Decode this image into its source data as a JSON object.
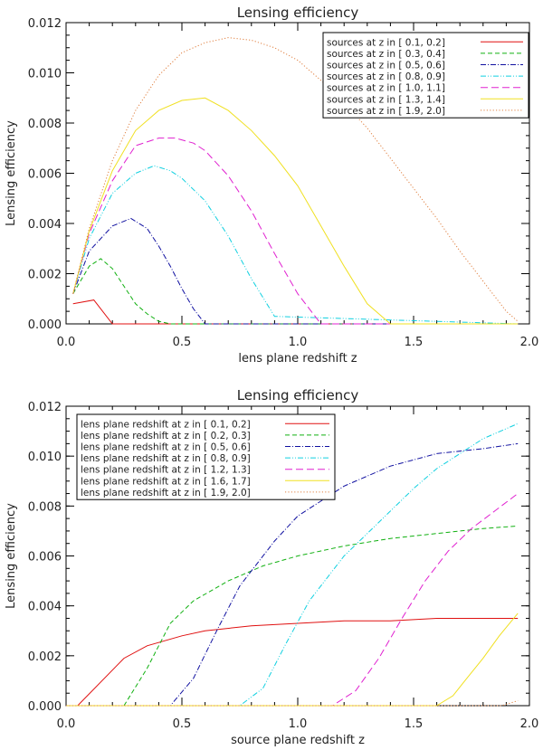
{
  "chart_data": [
    {
      "type": "line",
      "title": "Lensing efficiency",
      "xlabel": "lens plane redshift z",
      "ylabel": "Lensing efficiency",
      "xlim": [
        0.0,
        2.0
      ],
      "ylim": [
        0.0,
        0.012
      ],
      "xticks": [
        "0.0",
        "0.5",
        "1.0",
        "1.5",
        "2.0"
      ],
      "yticks": [
        "0.000",
        "0.002",
        "0.004",
        "0.006",
        "0.008",
        "0.010",
        "0.012"
      ],
      "legend_position": "top-right",
      "series": [
        {
          "name": "sources at z in [ 0.1, 0.2]",
          "color": "#e01010",
          "dash": "solid",
          "x": [
            0.03,
            0.12,
            0.2,
            1.95
          ],
          "y": [
            0.0008,
            0.00095,
            0.0,
            0.0
          ]
        },
        {
          "name": "sources at z in [ 0.3, 0.4]",
          "color": "#10b010",
          "dash": "dash",
          "x": [
            0.03,
            0.1,
            0.15,
            0.2,
            0.25,
            0.3,
            0.35,
            0.4,
            0.45,
            1.95
          ],
          "y": [
            0.0012,
            0.0023,
            0.0026,
            0.0022,
            0.0015,
            0.0008,
            0.0004,
            0.0001,
            0.0,
            0.0
          ]
        },
        {
          "name": "sources at z in [ 0.5, 0.6]",
          "color": "#1010a0",
          "dash": "dashdot",
          "x": [
            0.03,
            0.1,
            0.2,
            0.28,
            0.35,
            0.4,
            0.45,
            0.5,
            0.55,
            0.6,
            1.95
          ],
          "y": [
            0.0012,
            0.0029,
            0.0039,
            0.0042,
            0.0038,
            0.0031,
            0.0023,
            0.0014,
            0.0006,
            0.0,
            0.0
          ]
        },
        {
          "name": "sources at z in [ 0.8, 0.9]",
          "color": "#10d0e0",
          "dash": "dashdotdot",
          "x": [
            0.03,
            0.1,
            0.2,
            0.3,
            0.38,
            0.45,
            0.5,
            0.6,
            0.7,
            0.8,
            0.9,
            1.95
          ],
          "y": [
            0.0012,
            0.0034,
            0.0052,
            0.006,
            0.0063,
            0.0061,
            0.0058,
            0.0049,
            0.0035,
            0.0018,
            0.0003,
            0.0
          ]
        },
        {
          "name": "sources at z in [ 1.0, 1.1]",
          "color": "#e020d0",
          "dash": "longdash",
          "x": [
            0.03,
            0.1,
            0.2,
            0.3,
            0.4,
            0.47,
            0.55,
            0.6,
            0.7,
            0.8,
            0.9,
            1.0,
            1.1,
            1.95
          ],
          "y": [
            0.0012,
            0.0036,
            0.0057,
            0.0071,
            0.0074,
            0.0074,
            0.0072,
            0.0069,
            0.0059,
            0.0045,
            0.0028,
            0.0012,
            0.0,
            0.0
          ]
        },
        {
          "name": "sources at z in [ 1.3, 1.4]",
          "color": "#f0e020",
          "dash": "solid",
          "x": [
            0.03,
            0.1,
            0.2,
            0.3,
            0.4,
            0.5,
            0.6,
            0.7,
            0.8,
            0.9,
            1.0,
            1.1,
            1.2,
            1.3,
            1.4,
            1.95
          ],
          "y": [
            0.0012,
            0.0037,
            0.0061,
            0.0077,
            0.0085,
            0.0089,
            0.009,
            0.0085,
            0.0077,
            0.0067,
            0.0055,
            0.0039,
            0.0023,
            0.0008,
            0.0,
            0.0
          ]
        },
        {
          "name": "sources at z in [ 1.9, 2.0]",
          "color": "#e08040",
          "dash": "dot",
          "x": [
            0.03,
            0.1,
            0.2,
            0.3,
            0.4,
            0.5,
            0.6,
            0.7,
            0.8,
            0.9,
            1.0,
            1.1,
            1.2,
            1.3,
            1.4,
            1.5,
            1.6,
            1.7,
            1.8,
            1.9,
            1.95
          ],
          "y": [
            0.0012,
            0.0038,
            0.0065,
            0.0085,
            0.0099,
            0.0108,
            0.0112,
            0.0114,
            0.0113,
            0.011,
            0.0105,
            0.0097,
            0.0088,
            0.0078,
            0.0066,
            0.0054,
            0.0042,
            0.0029,
            0.0017,
            0.0005,
            0.0001
          ]
        }
      ]
    },
    {
      "type": "line",
      "title": "Lensing efficiency",
      "xlabel": "source plane redshift z",
      "ylabel": "Lensing efficiency",
      "xlim": [
        0.0,
        2.0
      ],
      "ylim": [
        0.0,
        0.012
      ],
      "xticks": [
        "0.0",
        "0.5",
        "1.0",
        "1.5",
        "2.0"
      ],
      "yticks": [
        "0.000",
        "0.002",
        "0.004",
        "0.006",
        "0.008",
        "0.010",
        "0.012"
      ],
      "legend_position": "top-left",
      "series": [
        {
          "name": "lens plane redshift at z in [ 0.1, 0.2]",
          "color": "#e01010",
          "dash": "solid",
          "x": [
            0.0,
            0.05,
            0.25,
            0.35,
            0.5,
            0.6,
            0.8,
            1.0,
            1.2,
            1.4,
            1.6,
            1.8,
            1.95
          ],
          "y": [
            0.0,
            0.0,
            0.0019,
            0.0024,
            0.0028,
            0.003,
            0.0032,
            0.0033,
            0.0034,
            0.0034,
            0.0035,
            0.0035,
            0.0035
          ]
        },
        {
          "name": "lens plane redshift at z in [ 0.2, 0.3]",
          "color": "#10b010",
          "dash": "dash",
          "x": [
            0.0,
            0.25,
            0.35,
            0.45,
            0.55,
            0.7,
            0.85,
            1.0,
            1.2,
            1.4,
            1.6,
            1.8,
            1.95
          ],
          "y": [
            0.0,
            0.0,
            0.0015,
            0.0033,
            0.0042,
            0.005,
            0.0056,
            0.006,
            0.0064,
            0.0067,
            0.0069,
            0.0071,
            0.0072
          ]
        },
        {
          "name": "lens plane redshift at z in [ 0.5, 0.6]",
          "color": "#1010a0",
          "dash": "dashdot",
          "x": [
            0.0,
            0.45,
            0.55,
            0.65,
            0.75,
            0.9,
            1.0,
            1.2,
            1.4,
            1.6,
            1.8,
            1.95
          ],
          "y": [
            0.0,
            0.0,
            0.0011,
            0.003,
            0.0048,
            0.0066,
            0.0076,
            0.0088,
            0.0096,
            0.0101,
            0.0103,
            0.0105
          ]
        },
        {
          "name": "lens plane redshift at z in [ 0.8, 0.9]",
          "color": "#10d0e0",
          "dash": "dashdotdot",
          "x": [
            0.0,
            0.75,
            0.85,
            0.95,
            1.05,
            1.2,
            1.3,
            1.4,
            1.5,
            1.6,
            1.7,
            1.8,
            1.95
          ],
          "y": [
            0.0,
            0.0,
            0.0007,
            0.0025,
            0.0042,
            0.006,
            0.0069,
            0.0078,
            0.0087,
            0.0095,
            0.0101,
            0.0107,
            0.0113
          ]
        },
        {
          "name": "lens plane redshift at z in [ 1.2, 1.3]",
          "color": "#e020d0",
          "dash": "longdash",
          "x": [
            0.0,
            1.15,
            1.25,
            1.35,
            1.45,
            1.55,
            1.65,
            1.75,
            1.85,
            1.95
          ],
          "y": [
            0.0,
            0.0,
            0.0006,
            0.0019,
            0.0035,
            0.005,
            0.0062,
            0.0071,
            0.0078,
            0.0085
          ]
        },
        {
          "name": "lens plane redshift at z in [ 1.6, 1.7]",
          "color": "#f0e020",
          "dash": "solid",
          "x": [
            0.0,
            1.6,
            1.67,
            1.73,
            1.8,
            1.87,
            1.95
          ],
          "y": [
            0.0,
            0.0,
            0.0004,
            0.0011,
            0.0019,
            0.0028,
            0.0037
          ]
        },
        {
          "name": "lens plane redshift at z in [ 1.9, 2.0]",
          "color": "#e08040",
          "dash": "dot",
          "x": [
            0.0,
            1.88,
            1.95
          ],
          "y": [
            0.0,
            0.0,
            0.0002
          ]
        }
      ]
    }
  ]
}
